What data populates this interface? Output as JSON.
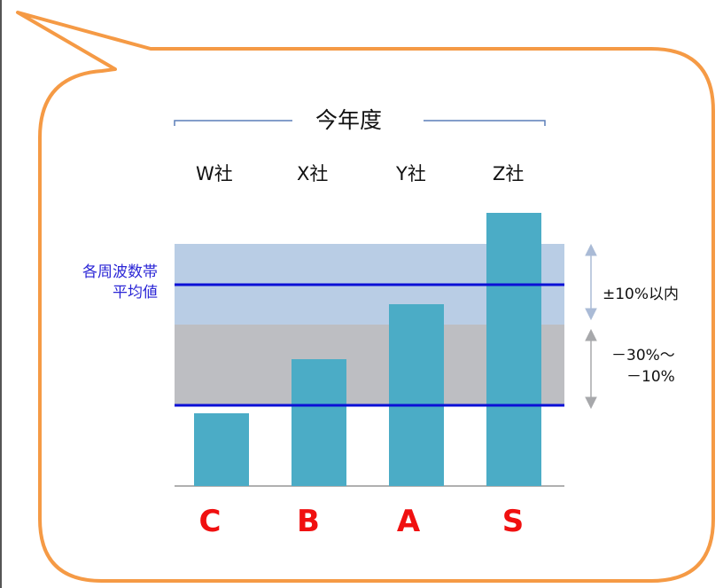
{
  "header": {
    "title": "今年度"
  },
  "companies": [
    "W社",
    "X社",
    "Y社",
    "Z社"
  ],
  "average_label": {
    "line1": "各周波数帯",
    "line2": "平均値"
  },
  "bands": {
    "upper": {
      "label": "±10%以内"
    },
    "lower": {
      "label_line1": "－30%～",
      "label_line2": "－10%"
    }
  },
  "grades": [
    "C",
    "B",
    "A",
    "S"
  ],
  "colors": {
    "bar": "#4bacc6",
    "upper_band": "#b9cde5",
    "lower_band": "#bdbec2",
    "reference_line": "#0b0fd6",
    "grade_text": "#f01010",
    "callout_border": "#f59a45"
  },
  "chart_data": {
    "type": "bar",
    "categories": [
      "W社",
      "X社",
      "Y社",
      "Z社"
    ],
    "values": [
      82,
      143,
      205,
      308
    ],
    "ylim": [
      0,
      320
    ],
    "reference_lines": [
      91,
      227
    ],
    "bands": [
      {
        "name": "±10%以内",
        "from": 182,
        "to": 273
      },
      {
        "name": "－30%～－10%",
        "from": 91,
        "to": 182
      }
    ],
    "category_grades": [
      "C",
      "B",
      "A",
      "S"
    ]
  }
}
